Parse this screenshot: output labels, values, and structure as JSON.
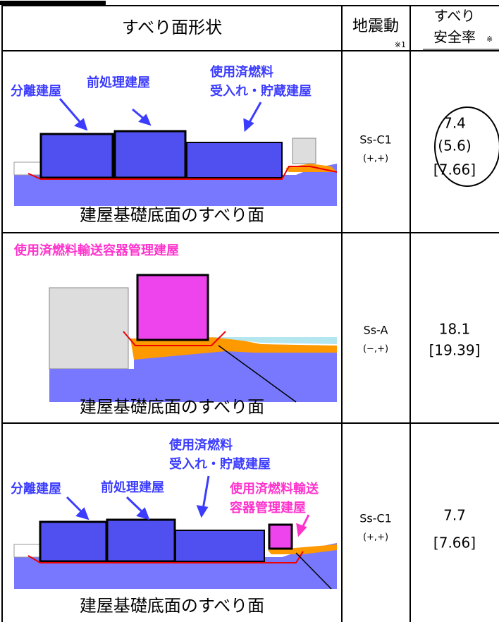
{
  "table": {
    "header": {
      "shape": "すべり面形状",
      "motion": "地震動",
      "motion_note": "※1",
      "factor_lines": [
        "すべり",
        "安全率"
      ],
      "factor_note": "※"
    },
    "rows": [
      {
        "labels": [
          {
            "lines": [
              "分離建屋"
            ],
            "color": "#3c3cff"
          },
          {
            "lines": [
              "前処理建屋"
            ],
            "color": "#3c3cff"
          },
          {
            "lines": [
              "使用済燃料",
              "受入れ・貯蔵建屋"
            ],
            "color": "#3c3cff"
          }
        ],
        "caption": "建屋基礎底面のすべり面",
        "motion": "Ss-C1",
        "sign": "(+,+)",
        "factor": [
          "7.4",
          "(5.6)",
          "[7.66]"
        ]
      },
      {
        "labels": [
          {
            "lines": [
              "使用済燃料輸送容器管理建屋"
            ],
            "color": "#ff33cc"
          }
        ],
        "caption": "建屋基礎底面のすべり面",
        "motion": "Ss-A",
        "sign": "(−,+)",
        "factor": [
          "18.1",
          "[19.39]"
        ]
      },
      {
        "labels": [
          {
            "lines": [
              "分離建屋"
            ],
            "color": "#3c3cff"
          },
          {
            "lines": [
              "前処理建屋"
            ],
            "color": "#3c3cff"
          },
          {
            "lines": [
              "使用済燃料",
              "受入れ・貯蔵建屋"
            ],
            "color": "#3c3cff"
          },
          {
            "lines": [
              "使用済燃料輸送",
              "容器管理建屋"
            ],
            "color": "#ff33cc"
          }
        ],
        "caption": "建屋基礎底面のすべり面",
        "motion": "Ss-C1",
        "sign": "(+,+)",
        "factor": [
          "7.7",
          "[7.66]"
        ]
      }
    ]
  }
}
